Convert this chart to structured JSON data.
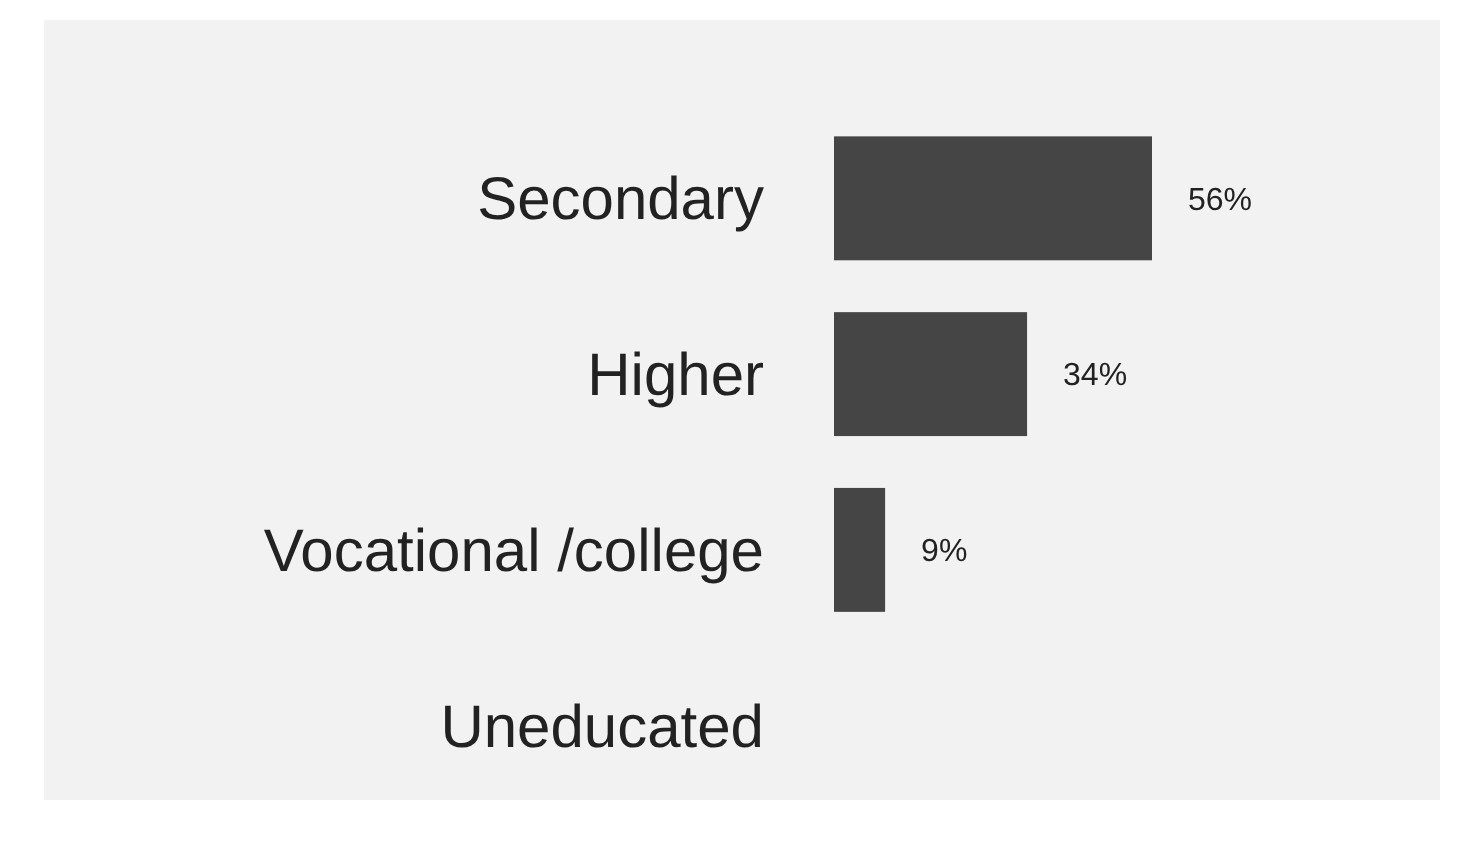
{
  "chart_data": {
    "type": "bar",
    "orientation": "horizontal",
    "categories": [
      "Secondary",
      "Higher",
      "Vocational /college",
      "Uneducated"
    ],
    "values": [
      56,
      34,
      9,
      0
    ],
    "value_labels": [
      "56%",
      "34%",
      "9%",
      null
    ],
    "color": "#454545"
  }
}
